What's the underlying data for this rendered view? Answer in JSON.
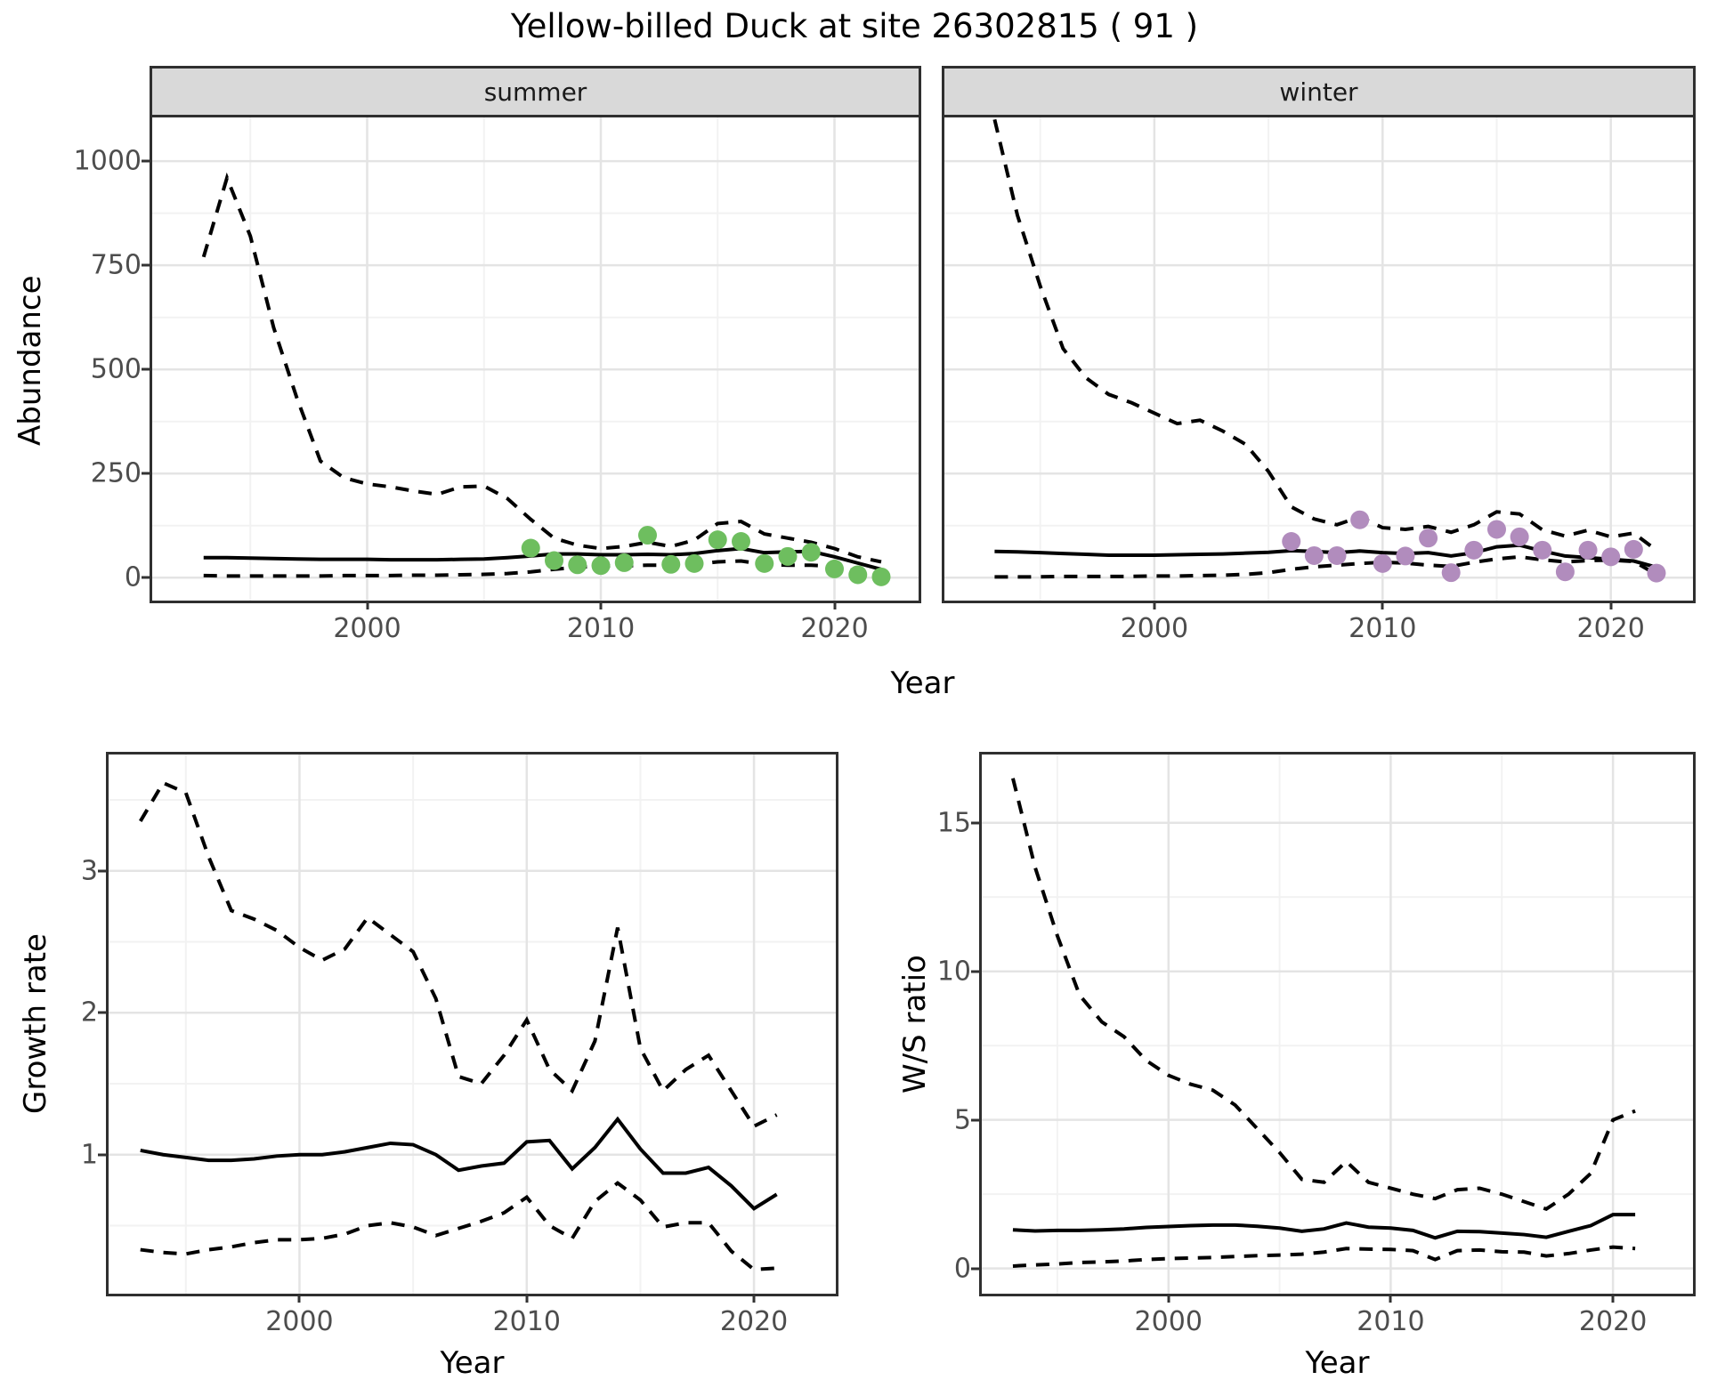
{
  "title": "Yellow-billed Duck at site 26302815 ( 91 )",
  "colors": {
    "summer_point": "#6ebe5f",
    "winter_point": "#b18cbd",
    "line": "#000000",
    "strip_bg": "#d9d9d9",
    "grid_major": "#e4e4e4",
    "grid_minor": "#f2f2f2",
    "panel_border": "#2f2f2f",
    "tick_text": "#4d4d4d"
  },
  "chart_data": [
    {
      "type": "line",
      "facet_label": "summer",
      "xlabel": "Year",
      "ylabel": "Abundance",
      "x": [
        1993,
        1994,
        1995,
        1996,
        1997,
        1998,
        1999,
        2000,
        2001,
        2002,
        2003,
        2004,
        2005,
        2006,
        2007,
        2008,
        2009,
        2010,
        2011,
        2012,
        2013,
        2014,
        2015,
        2016,
        2017,
        2018,
        2019,
        2020,
        2021,
        2022
      ],
      "series": [
        {
          "name": "upper_ci",
          "style": "dashed",
          "values": [
            770,
            960,
            820,
            600,
            430,
            280,
            240,
            225,
            218,
            208,
            200,
            218,
            220,
            190,
            140,
            95,
            78,
            70,
            75,
            85,
            75,
            90,
            130,
            135,
            105,
            95,
            85,
            70,
            50,
            38
          ]
        },
        {
          "name": "median",
          "style": "solid",
          "values": [
            48,
            48,
            47,
            46,
            45,
            44,
            44,
            44,
            43,
            43,
            43,
            44,
            45,
            48,
            52,
            57,
            57,
            55,
            55,
            56,
            55,
            58,
            65,
            70,
            60,
            62,
            63,
            50,
            35,
            20
          ]
        },
        {
          "name": "lower_ci",
          "style": "dashed",
          "values": [
            5,
            4,
            4,
            4,
            4,
            4,
            5,
            5,
            5,
            6,
            6,
            7,
            8,
            10,
            14,
            20,
            25,
            28,
            28,
            30,
            30,
            32,
            38,
            40,
            32,
            30,
            30,
            27,
            15,
            5
          ]
        },
        {
          "name": "observed_counts",
          "style": "points",
          "color_key": "summer_point",
          "x": [
            2007,
            2008,
            2009,
            2010,
            2011,
            2012,
            2013,
            2014,
            2015,
            2016,
            2017,
            2018,
            2019,
            2020,
            2021,
            2022
          ],
          "values": [
            71,
            41,
            31,
            29,
            36,
            102,
            32,
            34,
            91,
            87,
            34,
            51,
            61,
            21,
            7,
            2
          ]
        }
      ],
      "xlim": [
        1990.8,
        2023.6
      ],
      "ylim": [
        -55,
        1105
      ],
      "xticks": [
        2000,
        2010,
        2020
      ],
      "xticks_minor": [
        1995,
        2005,
        2015
      ],
      "yticks": [
        0,
        250,
        500,
        750,
        1000
      ],
      "yticks_minor": [
        125,
        375,
        625,
        875
      ],
      "grid": true,
      "legend": false
    },
    {
      "type": "line",
      "facet_label": "winter",
      "x": [
        1993,
        1994,
        1995,
        1996,
        1997,
        1998,
        1999,
        2000,
        2001,
        2002,
        2003,
        2004,
        2005,
        2006,
        2007,
        2008,
        2009,
        2010,
        2011,
        2012,
        2013,
        2014,
        2015,
        2016,
        2017,
        2018,
        2019,
        2020,
        2021,
        2022
      ],
      "series": [
        {
          "name": "upper_ci",
          "style": "dashed",
          "values": [
            1100,
            870,
            700,
            550,
            480,
            440,
            420,
            395,
            370,
            378,
            352,
            320,
            255,
            170,
            141,
            127,
            146,
            120,
            116,
            123,
            109,
            127,
            158,
            153,
            115,
            100,
            114,
            98,
            107,
            66
          ]
        },
        {
          "name": "median",
          "style": "solid",
          "values": [
            63,
            62,
            60,
            58,
            56,
            54,
            54,
            54,
            55,
            56,
            57,
            59,
            61,
            65,
            63,
            60,
            64,
            60,
            58,
            60,
            52,
            60,
            74,
            78,
            64,
            52,
            48,
            44,
            40,
            25
          ]
        },
        {
          "name": "lower_ci",
          "style": "dashed",
          "values": [
            2,
            2,
            2,
            3,
            3,
            3,
            3,
            4,
            4,
            5,
            6,
            8,
            12,
            20,
            26,
            30,
            34,
            37,
            35,
            30,
            27,
            37,
            45,
            50,
            43,
            38,
            41,
            42,
            39,
            8
          ]
        },
        {
          "name": "observed_counts",
          "style": "points",
          "color_key": "winter_point",
          "x": [
            2006,
            2007,
            2008,
            2009,
            2010,
            2011,
            2012,
            2013,
            2014,
            2015,
            2016,
            2017,
            2018,
            2019,
            2020,
            2021,
            2022
          ],
          "values": [
            87,
            53,
            53,
            139,
            34,
            52,
            95,
            12,
            66,
            116,
            98,
            66,
            14,
            66,
            50,
            68,
            11
          ]
        }
      ],
      "xlim": [
        1990.8,
        2023.6
      ],
      "ylim": [
        -55,
        1105
      ],
      "xticks": [
        2000,
        2010,
        2020
      ],
      "xticks_minor": [
        1995,
        2005,
        2015
      ],
      "yticks": [
        0,
        250,
        500,
        750,
        1000
      ],
      "yticks_minor": [
        125,
        375,
        625,
        875
      ],
      "grid": true,
      "legend": false
    },
    {
      "type": "line",
      "xlabel": "Year",
      "ylabel": "Growth rate",
      "x": [
        1993,
        1994,
        1995,
        1996,
        1997,
        1998,
        1999,
        2000,
        2001,
        2002,
        2003,
        2004,
        2005,
        2006,
        2007,
        2008,
        2009,
        2010,
        2011,
        2012,
        2013,
        2014,
        2015,
        2016,
        2017,
        2018,
        2019,
        2020,
        2021
      ],
      "series": [
        {
          "name": "upper_ci",
          "style": "dashed",
          "values": [
            3.35,
            3.62,
            3.55,
            3.1,
            2.72,
            2.66,
            2.58,
            2.46,
            2.37,
            2.45,
            2.67,
            2.55,
            2.43,
            2.1,
            1.55,
            1.5,
            1.7,
            1.95,
            1.6,
            1.45,
            1.8,
            2.6,
            1.75,
            1.45,
            1.6,
            1.7,
            1.45,
            1.2,
            1.28
          ]
        },
        {
          "name": "median",
          "style": "solid",
          "values": [
            1.03,
            1.0,
            0.98,
            0.96,
            0.96,
            0.97,
            0.99,
            1.0,
            1.0,
            1.02,
            1.05,
            1.08,
            1.07,
            1.0,
            0.89,
            0.92,
            0.94,
            1.09,
            1.1,
            0.9,
            1.05,
            1.25,
            1.04,
            0.87,
            0.87,
            0.91,
            0.78,
            0.62,
            0.72
          ]
        },
        {
          "name": "lower_ci",
          "style": "dashed",
          "values": [
            0.33,
            0.31,
            0.3,
            0.33,
            0.35,
            0.38,
            0.4,
            0.4,
            0.41,
            0.44,
            0.5,
            0.52,
            0.49,
            0.43,
            0.48,
            0.53,
            0.59,
            0.7,
            0.5,
            0.41,
            0.67,
            0.8,
            0.68,
            0.49,
            0.52,
            0.52,
            0.32,
            0.19,
            0.2
          ]
        }
      ],
      "xlim": [
        1991.6,
        2023.6
      ],
      "ylim": [
        0.02,
        3.82
      ],
      "xticks": [
        2000,
        2010,
        2020
      ],
      "xticks_minor": [
        1995,
        2005,
        2015
      ],
      "yticks": [
        1,
        2,
        3
      ],
      "yticks_minor": [
        0.5,
        1.5,
        2.5,
        3.5
      ],
      "grid": true,
      "legend": false
    },
    {
      "type": "line",
      "xlabel": "Year",
      "ylabel": "W/S ratio",
      "x": [
        1993,
        1994,
        1995,
        1996,
        1997,
        1998,
        1999,
        2000,
        2001,
        2002,
        2003,
        2004,
        2005,
        2006,
        2007,
        2008,
        2009,
        2010,
        2011,
        2012,
        2013,
        2014,
        2015,
        2016,
        2017,
        2018,
        2019,
        2020,
        2021
      ],
      "series": [
        {
          "name": "upper_ci",
          "style": "dashed",
          "values": [
            16.5,
            13.5,
            11.2,
            9.2,
            8.3,
            7.8,
            7.0,
            6.5,
            6.2,
            6.0,
            5.5,
            4.7,
            3.9,
            3.0,
            2.9,
            3.6,
            2.9,
            2.7,
            2.5,
            2.35,
            2.65,
            2.7,
            2.5,
            2.25,
            2.0,
            2.5,
            3.2,
            5.0,
            5.3
          ]
        },
        {
          "name": "median",
          "style": "solid",
          "values": [
            1.3,
            1.26,
            1.28,
            1.28,
            1.3,
            1.33,
            1.38,
            1.41,
            1.44,
            1.46,
            1.46,
            1.42,
            1.36,
            1.25,
            1.33,
            1.53,
            1.39,
            1.36,
            1.28,
            1.03,
            1.25,
            1.24,
            1.19,
            1.14,
            1.05,
            1.25,
            1.44,
            1.81,
            1.81
          ]
        },
        {
          "name": "lower_ci",
          "style": "dashed",
          "values": [
            0.08,
            0.12,
            0.15,
            0.2,
            0.22,
            0.25,
            0.3,
            0.33,
            0.35,
            0.37,
            0.4,
            0.43,
            0.45,
            0.48,
            0.55,
            0.67,
            0.65,
            0.64,
            0.6,
            0.3,
            0.6,
            0.62,
            0.56,
            0.55,
            0.42,
            0.5,
            0.62,
            0.72,
            0.67
          ]
        }
      ],
      "xlim": [
        1991.6,
        2023.6
      ],
      "ylim": [
        -0.85,
        17.3
      ],
      "xticks": [
        2000,
        2010,
        2020
      ],
      "xticks_minor": [
        1995,
        2005,
        2015
      ],
      "yticks": [
        0,
        5,
        10,
        15
      ],
      "yticks_minor": [
        2.5,
        7.5,
        12.5
      ],
      "grid": true,
      "legend": false
    }
  ]
}
